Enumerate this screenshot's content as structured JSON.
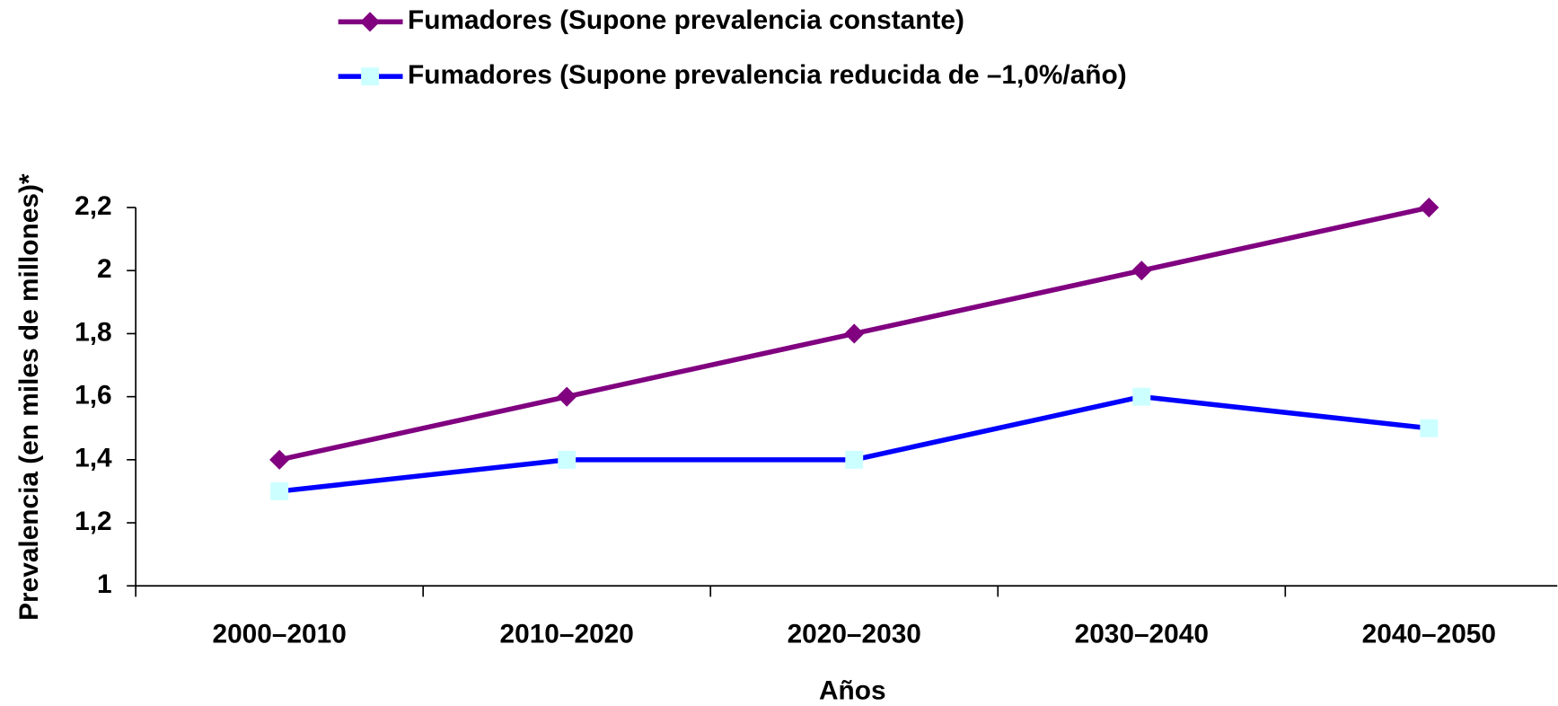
{
  "chart_data": {
    "type": "line",
    "x_label": "Años",
    "y_label": "Prevalencia (en miles de millones)*",
    "categories": [
      "2000–2010",
      "2010–2020",
      "2020–2030",
      "2030–2040",
      "2040–2050"
    ],
    "series": [
      {
        "name": "Fumadores (Supone prevalencia constante)",
        "color": "#800080",
        "marker": "diamond",
        "values": [
          1.4,
          1.6,
          1.8,
          2.0,
          2.2
        ]
      },
      {
        "name": "Fumadores (Supone prevalencia reducida de –1,0%/año)",
        "color": "#0000ff",
        "marker_color": "#ccffff",
        "marker": "square",
        "values": [
          1.3,
          1.4,
          1.4,
          1.6,
          1.5
        ]
      }
    ],
    "ylim": [
      1,
      2.2
    ],
    "yticks": [
      1,
      {
        "value": 1.2,
        "label": "1,2"
      },
      {
        "value": 1.4,
        "label": "1,4"
      },
      {
        "value": 1.6,
        "label": "1,6"
      },
      {
        "value": 1.8,
        "label": "1,8"
      },
      2,
      {
        "value": 2.2,
        "label": "2,2"
      }
    ],
    "legend": "top"
  }
}
